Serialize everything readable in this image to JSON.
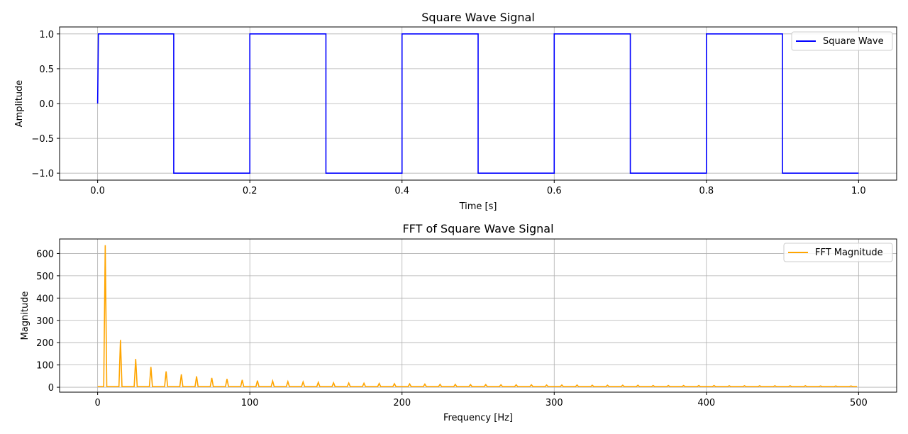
{
  "chart_data": [
    {
      "type": "line",
      "title": "Square Wave Signal",
      "xlabel": "Time [s]",
      "ylabel": "Amplitude",
      "xlim": [
        -0.05,
        1.05
      ],
      "ylim": [
        -1.1,
        1.1
      ],
      "xticks": [
        0.0,
        0.2,
        0.4,
        0.6,
        0.8,
        1.0
      ],
      "xtick_labels": [
        "0.0",
        "0.2",
        "0.4",
        "0.6",
        "0.8",
        "1.0"
      ],
      "yticks": [
        -1.0,
        -0.5,
        0.0,
        0.5,
        1.0
      ],
      "ytick_labels": [
        "−1.0",
        "−0.5",
        "0.0",
        "0.5",
        "1.0"
      ],
      "grid": true,
      "legend_position": "top-right",
      "series": [
        {
          "name": "Square Wave",
          "color": "#0000ff",
          "x": [
            0,
            0.001,
            0.1,
            0.1,
            0.2,
            0.2,
            0.3,
            0.3,
            0.4,
            0.4,
            0.5,
            0.5,
            0.6,
            0.6,
            0.7,
            0.7,
            0.8,
            0.8,
            0.9,
            0.9,
            1.0
          ],
          "y": [
            0,
            1,
            1,
            -1,
            -1,
            1,
            1,
            -1,
            -1,
            1,
            1,
            -1,
            -1,
            1,
            1,
            -1,
            -1,
            1,
            1,
            -1,
            -1
          ]
        }
      ]
    },
    {
      "type": "line",
      "title": "FFT of Square Wave Signal",
      "xlabel": "Frequency [Hz]",
      "ylabel": "Magnitude",
      "xlim": [
        -25,
        525
      ],
      "ylim": [
        -22,
        665
      ],
      "xticks": [
        0,
        100,
        200,
        300,
        400,
        500
      ],
      "xtick_labels": [
        "0",
        "100",
        "200",
        "300",
        "400",
        "500"
      ],
      "yticks": [
        0,
        100,
        200,
        300,
        400,
        500,
        600
      ],
      "ytick_labels": [
        "0",
        "100",
        "200",
        "300",
        "400",
        "500",
        "600"
      ],
      "grid": true,
      "legend_position": "top-right",
      "series": [
        {
          "name": "FFT Magnitude",
          "color": "#ffa500",
          "baseline": 3,
          "bin_width": 1,
          "x_max": 499,
          "peaks_x": [
            5,
            15,
            25,
            35,
            45,
            55,
            65,
            75,
            85,
            95,
            105,
            115,
            125,
            135,
            145,
            155,
            165,
            175,
            185,
            195,
            205,
            215,
            225,
            235,
            245,
            255,
            265,
            275,
            285,
            295,
            305,
            315,
            325,
            335,
            345,
            355,
            365,
            375,
            385,
            395,
            405,
            415,
            425,
            435,
            445,
            455,
            465,
            475,
            485,
            495
          ],
          "peaks_y": [
            637,
            212,
            127,
            91,
            71,
            58,
            49,
            42,
            37,
            33,
            30,
            28,
            25,
            24,
            22,
            20,
            19,
            18,
            17,
            16,
            15,
            14,
            13,
            13,
            12,
            12,
            11,
            11,
            11,
            10,
            10,
            10,
            9,
            9,
            9,
            9,
            8,
            8,
            8,
            8,
            8,
            7,
            7,
            7,
            7,
            7,
            7,
            6,
            6,
            6
          ]
        }
      ]
    }
  ]
}
